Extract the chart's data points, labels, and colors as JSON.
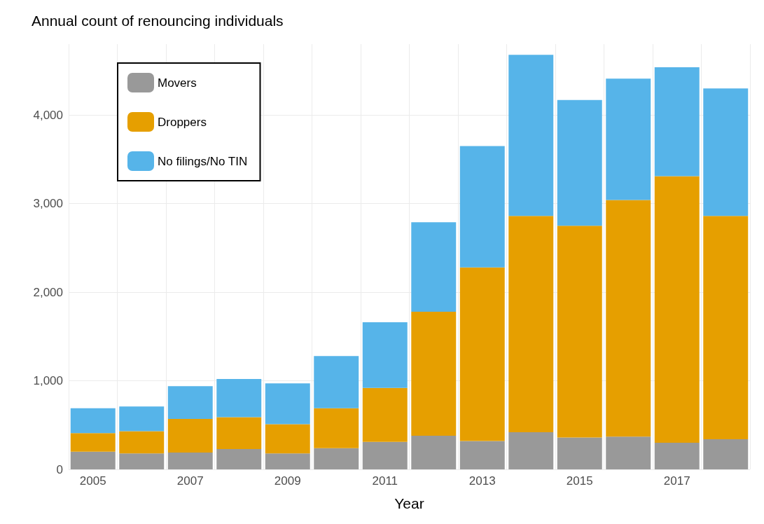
{
  "chart_data": {
    "type": "bar",
    "title": "Annual count of renouncing individuals",
    "xlabel": "Year",
    "categories": [
      "2005",
      null,
      "2007",
      null,
      "2009",
      null,
      "2011",
      null,
      "2013",
      null,
      "2015",
      null,
      "2017",
      null
    ],
    "stacked": true,
    "grid": true,
    "legend": "top left",
    "ylim": [
      0,
      4800
    ],
    "yticks": [
      0,
      {
        "value": 1000,
        "label": "1,000"
      },
      {
        "value": 2000,
        "label": "2,000"
      },
      {
        "value": 3000,
        "label": "3,000"
      },
      {
        "value": 4000,
        "label": "4,000"
      }
    ],
    "series": [
      {
        "name": "Movers",
        "color": "#999999",
        "values": [
          200,
          180,
          190,
          230,
          180,
          240,
          310,
          380,
          320,
          420,
          360,
          370,
          300,
          340
        ]
      },
      {
        "name": "Droppers",
        "color": "#e69f00",
        "values": [
          210,
          250,
          380,
          360,
          330,
          450,
          610,
          1400,
          1960,
          2440,
          2390,
          2670,
          3010,
          2520
        ]
      },
      {
        "name": "No filings/No TIN",
        "color": "#56b4e9",
        "values": [
          280,
          280,
          370,
          430,
          460,
          590,
          740,
          1010,
          1370,
          1820,
          1420,
          1370,
          1230,
          1440
        ]
      }
    ]
  }
}
